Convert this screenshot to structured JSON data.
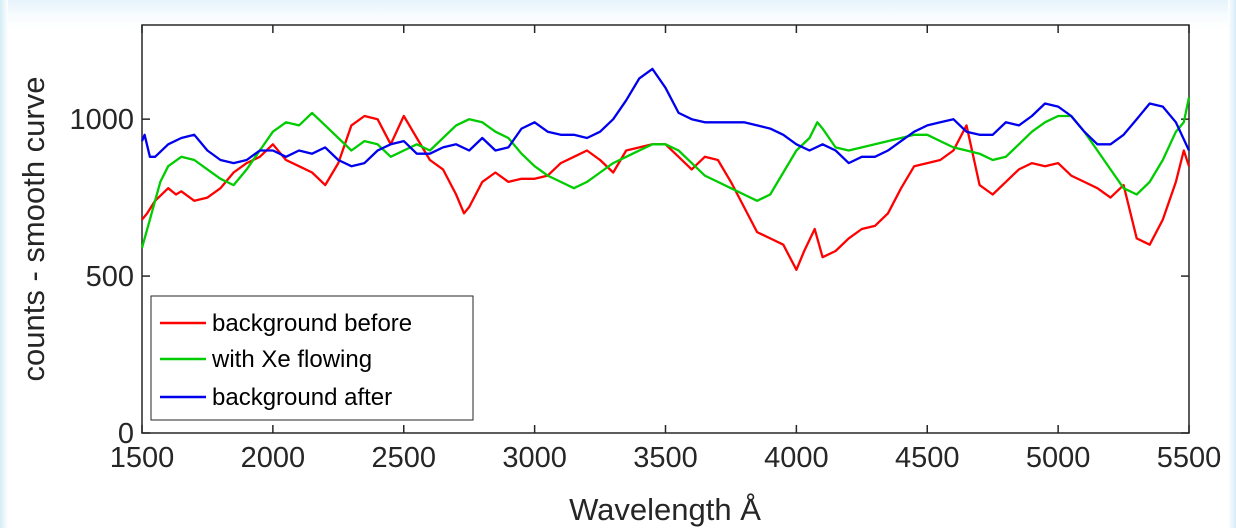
{
  "chart_data": {
    "type": "line",
    "xlabel": "Wavelength Å",
    "ylabel": "counts - smooth curve",
    "xlim": [
      1500,
      5500
    ],
    "ylim": [
      0,
      1300
    ],
    "xticks": [
      "1500",
      "2000",
      "2500",
      "3000",
      "3500",
      "4000",
      "4500",
      "5000",
      "5500"
    ],
    "yticks": [
      "0",
      "500",
      "1000"
    ],
    "grid": false,
    "legend_position": "bottom-left",
    "series": [
      {
        "name": "background before",
        "color": "#ff0000",
        "x": [
          1500,
          1520,
          1550,
          1600,
          1630,
          1650,
          1700,
          1750,
          1800,
          1850,
          1900,
          1950,
          2000,
          2050,
          2100,
          2150,
          2200,
          2250,
          2300,
          2350,
          2400,
          2450,
          2500,
          2550,
          2600,
          2650,
          2700,
          2730,
          2750,
          2800,
          2850,
          2900,
          2950,
          3000,
          3050,
          3100,
          3150,
          3200,
          3250,
          3300,
          3350,
          3400,
          3450,
          3500,
          3550,
          3600,
          3650,
          3700,
          3750,
          3800,
          3850,
          3900,
          3950,
          4000,
          4030,
          4070,
          4100,
          4150,
          4200,
          4250,
          4300,
          4350,
          4400,
          4450,
          4500,
          4550,
          4600,
          4650,
          4700,
          4750,
          4800,
          4850,
          4900,
          4950,
          5000,
          5050,
          5100,
          5150,
          5200,
          5250,
          5300,
          5350,
          5400,
          5450,
          5480,
          5500
        ],
        "y": [
          680,
          700,
          740,
          780,
          760,
          770,
          740,
          750,
          780,
          830,
          860,
          880,
          920,
          870,
          850,
          830,
          790,
          860,
          980,
          1010,
          1000,
          920,
          1010,
          940,
          870,
          840,
          760,
          700,
          720,
          800,
          830,
          800,
          810,
          810,
          820,
          860,
          880,
          900,
          870,
          830,
          900,
          910,
          920,
          920,
          880,
          840,
          880,
          870,
          800,
          720,
          640,
          620,
          600,
          520,
          580,
          650,
          560,
          580,
          620,
          650,
          660,
          700,
          780,
          850,
          860,
          870,
          900,
          980,
          790,
          760,
          800,
          840,
          860,
          850,
          860,
          820,
          800,
          780,
          750,
          790,
          620,
          600,
          680,
          800,
          900,
          850
        ]
      },
      {
        "name": "with Xe flowing",
        "color": "#00cc00",
        "x": [
          1500,
          1530,
          1570,
          1600,
          1650,
          1700,
          1750,
          1800,
          1850,
          1900,
          1950,
          2000,
          2050,
          2100,
          2150,
          2200,
          2250,
          2300,
          2350,
          2400,
          2450,
          2500,
          2550,
          2600,
          2650,
          2700,
          2750,
          2800,
          2850,
          2900,
          2950,
          3000,
          3050,
          3100,
          3150,
          3200,
          3250,
          3300,
          3350,
          3400,
          3450,
          3500,
          3550,
          3600,
          3650,
          3700,
          3750,
          3800,
          3850,
          3900,
          3950,
          4000,
          4050,
          4080,
          4100,
          4150,
          4200,
          4250,
          4300,
          4350,
          4400,
          4450,
          4500,
          4550,
          4600,
          4650,
          4700,
          4750,
          4800,
          4850,
          4900,
          4950,
          5000,
          5050,
          5100,
          5150,
          5200,
          5250,
          5300,
          5350,
          5400,
          5450,
          5480,
          5500
        ],
        "y": [
          590,
          680,
          800,
          850,
          880,
          870,
          840,
          810,
          790,
          840,
          900,
          960,
          990,
          980,
          1020,
          980,
          940,
          900,
          930,
          920,
          880,
          900,
          920,
          900,
          940,
          980,
          1000,
          990,
          960,
          940,
          890,
          850,
          820,
          800,
          780,
          800,
          830,
          860,
          880,
          900,
          920,
          920,
          900,
          860,
          820,
          800,
          780,
          760,
          740,
          760,
          830,
          900,
          940,
          990,
          970,
          910,
          900,
          910,
          920,
          930,
          940,
          950,
          950,
          930,
          910,
          900,
          890,
          870,
          880,
          920,
          960,
          990,
          1010,
          1010,
          960,
          900,
          840,
          780,
          760,
          800,
          870,
          960,
          990,
          1070
        ]
      },
      {
        "name": "background after",
        "color": "#0000ee",
        "x": [
          1500,
          1510,
          1530,
          1550,
          1600,
          1650,
          1700,
          1750,
          1800,
          1850,
          1900,
          1950,
          2000,
          2050,
          2100,
          2150,
          2200,
          2250,
          2300,
          2350,
          2400,
          2450,
          2500,
          2550,
          2600,
          2650,
          2700,
          2750,
          2800,
          2850,
          2900,
          2950,
          3000,
          3050,
          3100,
          3150,
          3200,
          3250,
          3300,
          3350,
          3400,
          3450,
          3500,
          3550,
          3600,
          3650,
          3700,
          3750,
          3800,
          3850,
          3900,
          3950,
          4000,
          4050,
          4100,
          4150,
          4200,
          4250,
          4300,
          4350,
          4400,
          4450,
          4500,
          4550,
          4600,
          4650,
          4700,
          4750,
          4800,
          4850,
          4900,
          4950,
          5000,
          5050,
          5100,
          5150,
          5200,
          5250,
          5300,
          5350,
          5400,
          5450,
          5500
        ],
        "y": [
          930,
          950,
          880,
          880,
          920,
          940,
          950,
          900,
          870,
          860,
          870,
          900,
          900,
          880,
          900,
          890,
          910,
          870,
          850,
          860,
          900,
          920,
          930,
          890,
          890,
          910,
          920,
          900,
          940,
          900,
          910,
          970,
          990,
          960,
          950,
          950,
          940,
          960,
          1000,
          1060,
          1130,
          1160,
          1100,
          1020,
          1000,
          990,
          990,
          990,
          990,
          980,
          970,
          950,
          920,
          900,
          920,
          900,
          860,
          880,
          880,
          900,
          930,
          960,
          980,
          990,
          1000,
          960,
          950,
          950,
          990,
          980,
          1010,
          1050,
          1040,
          1010,
          960,
          920,
          920,
          950,
          1000,
          1050,
          1040,
          990,
          900
        ]
      }
    ]
  }
}
